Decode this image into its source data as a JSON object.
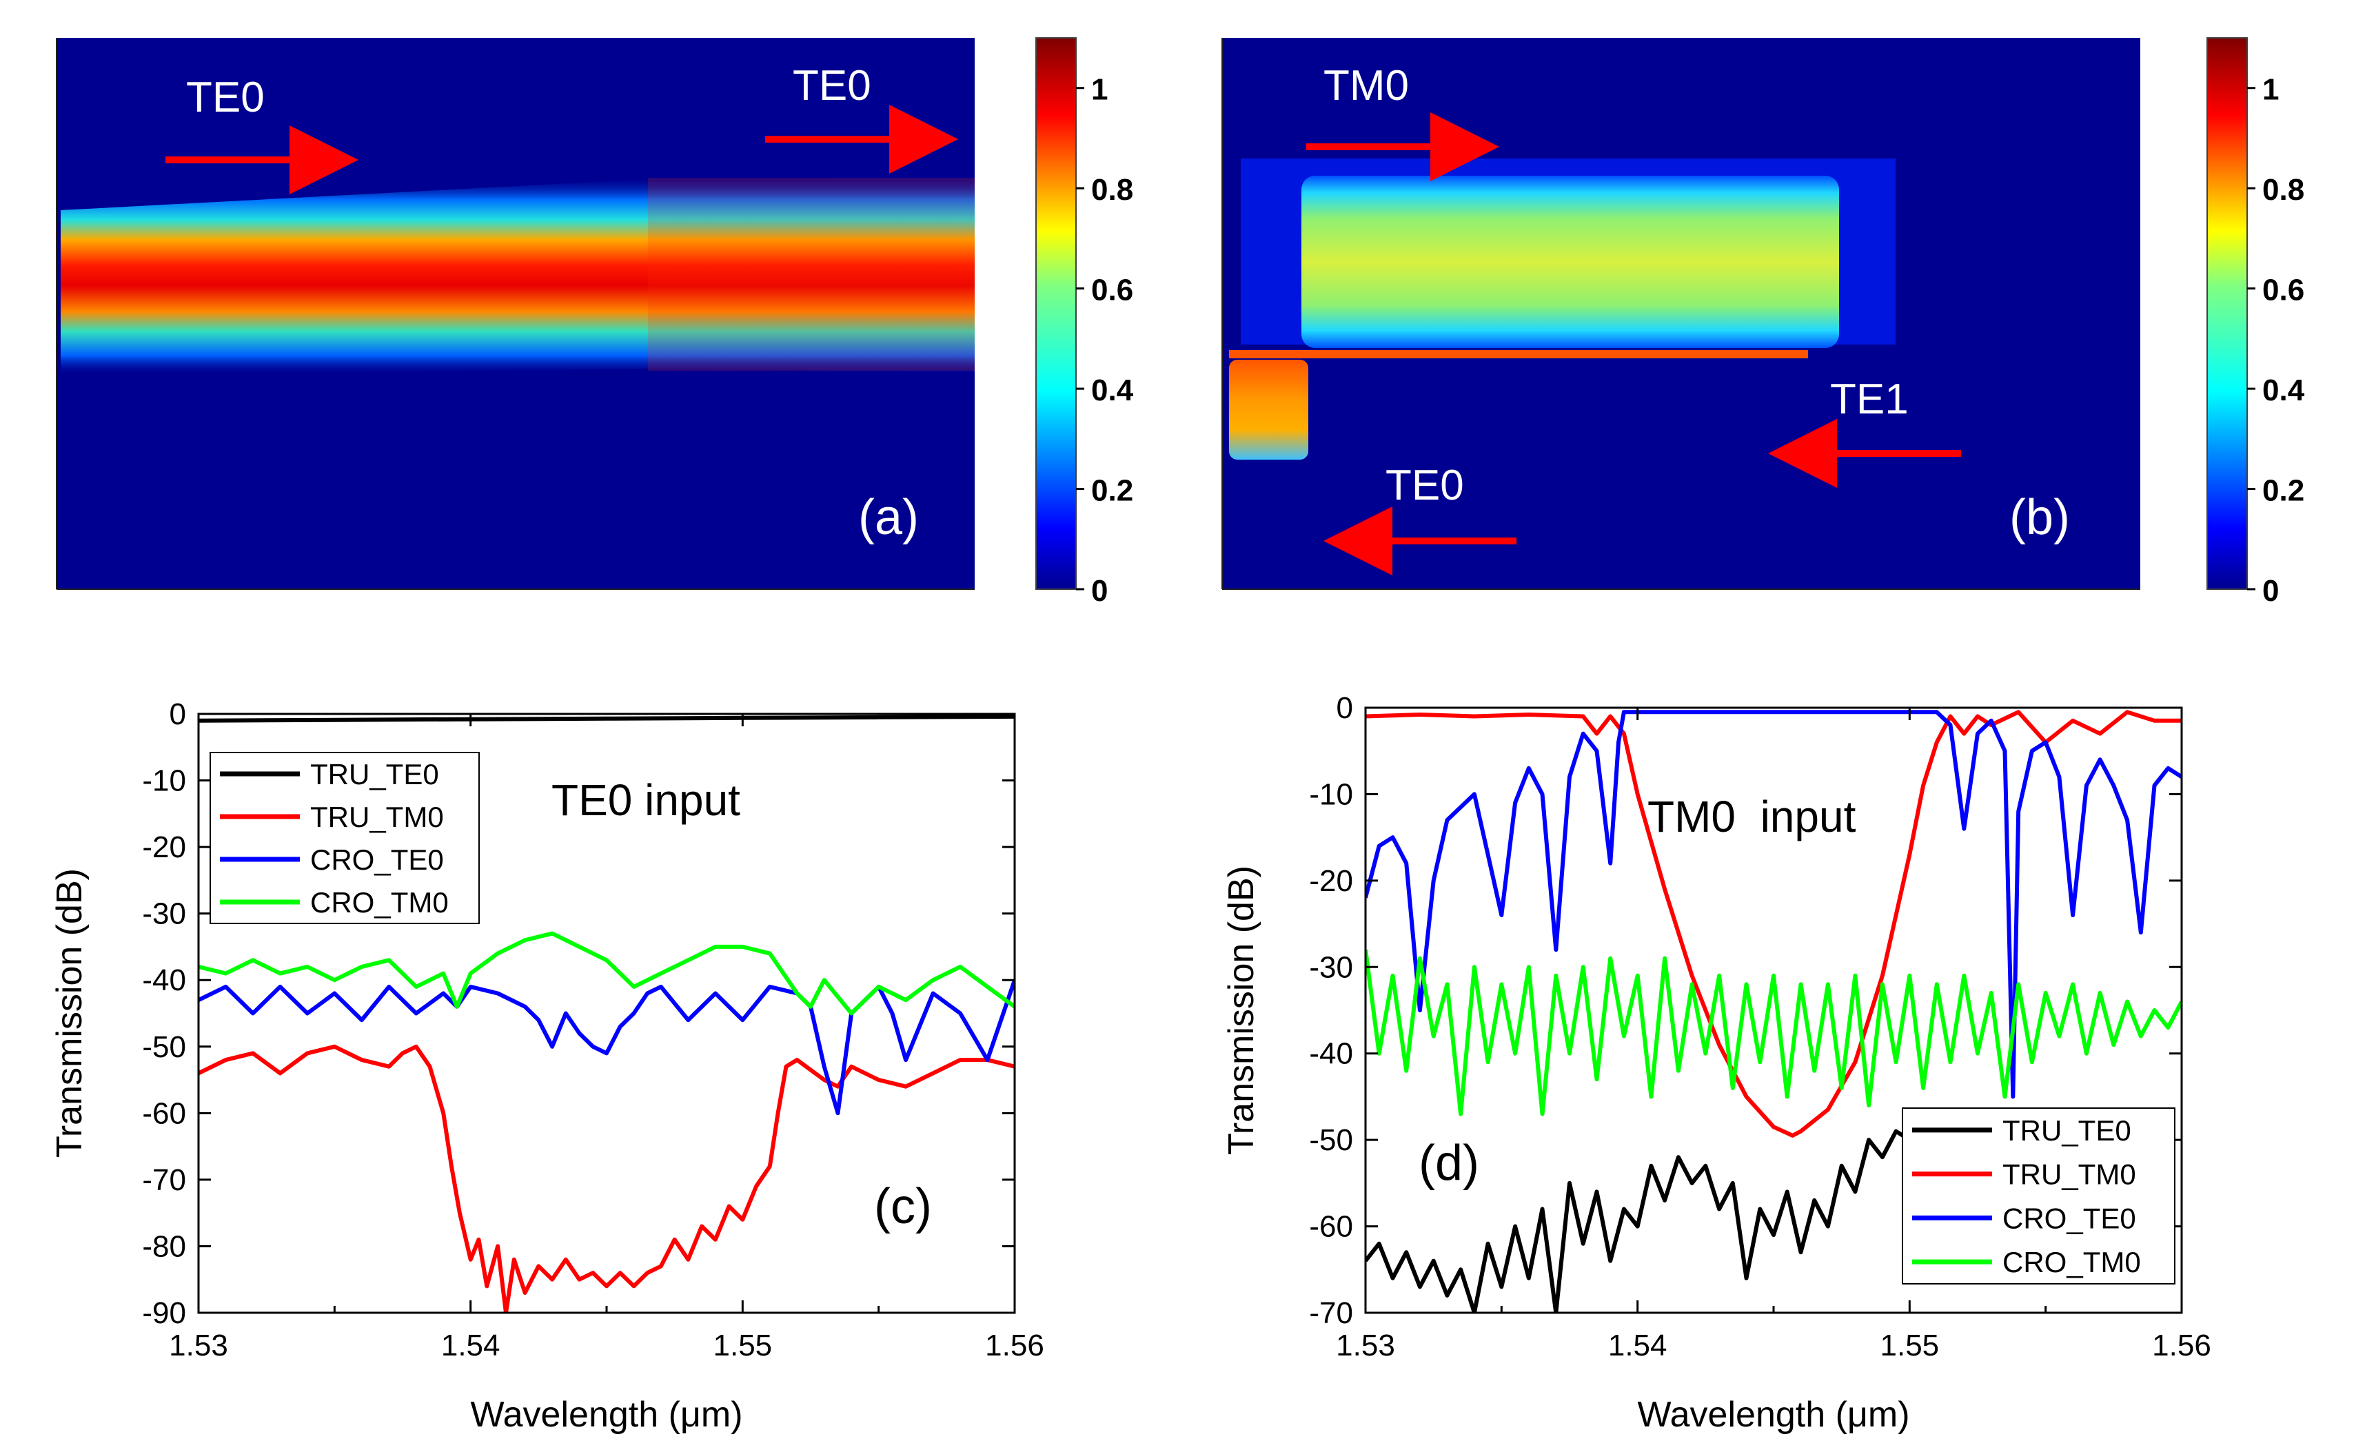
{
  "chart_data": [
    {
      "id": "a",
      "type": "heatmap",
      "label": "(a)",
      "annotations": [
        "TE0",
        "TE0"
      ],
      "colorbar": {
        "range": [
          0,
          1.1
        ],
        "ticks": [
          "0",
          "0.2",
          "0.4",
          "0.6",
          "0.8",
          "1"
        ]
      }
    },
    {
      "id": "b",
      "type": "heatmap",
      "label": "(b)",
      "annotations": [
        "TM0",
        "TE1",
        "TE0"
      ],
      "colorbar": {
        "range": [
          0,
          1.1
        ],
        "ticks": [
          "0",
          "0.2",
          "0.4",
          "0.6",
          "0.8",
          "1"
        ]
      }
    },
    {
      "id": "c",
      "type": "line",
      "label": "(c)",
      "title": "TE0 input",
      "xlabel": "Wavelength (μm)",
      "ylabel": "Transmission (dB)",
      "xlim": [
        1.53,
        1.56
      ],
      "ylim": [
        -90,
        0
      ],
      "xticks": [
        "1.53",
        "1.54",
        "1.55",
        "1.56"
      ],
      "yticks": [
        "0",
        "-10",
        "-20",
        "-30",
        "-40",
        "-50",
        "-60",
        "-70",
        "-80",
        "-90"
      ],
      "legend": [
        "TRU_TE0",
        "TRU_TM0",
        "CRO_TE0",
        "CRO_TM0"
      ],
      "legend_position": "top-left",
      "series": [
        {
          "name": "TRU_TE0",
          "color": "#000000",
          "x": [
            1.53,
            1.535,
            1.54,
            1.545,
            1.55,
            1.555,
            1.56
          ],
          "y": [
            -1.0,
            -0.9,
            -0.8,
            -0.7,
            -0.6,
            -0.5,
            -0.4
          ]
        },
        {
          "name": "TRU_TM0",
          "color": "#ff0000",
          "x": [
            1.53,
            1.531,
            1.532,
            1.533,
            1.534,
            1.535,
            1.536,
            1.537,
            1.5375,
            1.538,
            1.5385,
            1.539,
            1.5393,
            1.5396,
            1.54,
            1.5403,
            1.5406,
            1.541,
            1.5413,
            1.5416,
            1.542,
            1.5425,
            1.543,
            1.5435,
            1.544,
            1.5445,
            1.545,
            1.5455,
            1.546,
            1.5465,
            1.547,
            1.5475,
            1.548,
            1.5485,
            1.549,
            1.5495,
            1.55,
            1.5505,
            1.551,
            1.5513,
            1.5516,
            1.552,
            1.553,
            1.5535,
            1.554,
            1.555,
            1.556,
            1.557,
            1.558,
            1.559,
            1.56
          ],
          "y": [
            -54,
            -52,
            -51,
            -54,
            -51,
            -50,
            -52,
            -53,
            -51,
            -50,
            -53,
            -60,
            -68,
            -75,
            -82,
            -79,
            -86,
            -80,
            -90,
            -82,
            -87,
            -83,
            -85,
            -82,
            -85,
            -84,
            -86,
            -84,
            -86,
            -84,
            -83,
            -79,
            -82,
            -77,
            -79,
            -74,
            -76,
            -71,
            -68,
            -60,
            -53,
            -52,
            -55,
            -56,
            -53,
            -55,
            -56,
            -54,
            -52,
            -52,
            -53
          ]
        },
        {
          "name": "CRO_TE0",
          "color": "#0000ff",
          "x": [
            1.53,
            1.531,
            1.532,
            1.533,
            1.534,
            1.535,
            1.536,
            1.537,
            1.538,
            1.539,
            1.5395,
            1.54,
            1.541,
            1.542,
            1.5425,
            1.543,
            1.5435,
            1.544,
            1.5445,
            1.545,
            1.5455,
            1.546,
            1.5465,
            1.547,
            1.548,
            1.549,
            1.55,
            1.551,
            1.552,
            1.5525,
            1.553,
            1.5535,
            1.554,
            1.555,
            1.5555,
            1.556,
            1.557,
            1.558,
            1.559,
            1.56
          ],
          "y": [
            -43,
            -41,
            -45,
            -41,
            -45,
            -42,
            -46,
            -41,
            -45,
            -42,
            -44,
            -41,
            -42,
            -44,
            -46,
            -50,
            -45,
            -48,
            -50,
            -51,
            -47,
            -45,
            -42,
            -41,
            -46,
            -42,
            -46,
            -41,
            -42,
            -44,
            -53,
            -60,
            -45,
            -41,
            -45,
            -52,
            -42,
            -45,
            -52,
            -40
          ]
        },
        {
          "name": "CRO_TM0",
          "color": "#00ff00",
          "x": [
            1.53,
            1.531,
            1.532,
            1.533,
            1.534,
            1.535,
            1.536,
            1.537,
            1.538,
            1.539,
            1.5395,
            1.54,
            1.541,
            1.542,
            1.543,
            1.544,
            1.545,
            1.546,
            1.547,
            1.548,
            1.549,
            1.55,
            1.551,
            1.552,
            1.5525,
            1.553,
            1.554,
            1.555,
            1.556,
            1.557,
            1.558,
            1.559,
            1.56
          ],
          "y": [
            -38,
            -39,
            -37,
            -39,
            -38,
            -40,
            -38,
            -37,
            -41,
            -39,
            -44,
            -39,
            -36,
            -34,
            -33,
            -35,
            -37,
            -41,
            -39,
            -37,
            -35,
            -35,
            -36,
            -42,
            -44,
            -40,
            -45,
            -41,
            -43,
            -40,
            -38,
            -41,
            -44
          ]
        }
      ]
    },
    {
      "id": "d",
      "type": "line",
      "label": "(d)",
      "title": "TM0  input",
      "xlabel": "Wavelength (μm)",
      "ylabel": "Transmission (dB)",
      "xlim": [
        1.53,
        1.56
      ],
      "ylim": [
        -70,
        0
      ],
      "xticks": [
        "1.53",
        "1.54",
        "1.55",
        "1.56"
      ],
      "yticks": [
        "0",
        "-10",
        "-20",
        "-30",
        "-40",
        "-50",
        "-60",
        "-70"
      ],
      "legend": [
        "TRU_TE0",
        "TRU_TM0",
        "CRO_TE0",
        "CRO_TM0"
      ],
      "legend_position": "bottom-right",
      "series": [
        {
          "name": "TRU_TE0",
          "color": "#000000",
          "x": [
            1.53,
            1.5305,
            1.531,
            1.5315,
            1.532,
            1.5325,
            1.533,
            1.5335,
            1.534,
            1.5345,
            1.535,
            1.5355,
            1.536,
            1.5365,
            1.537,
            1.5375,
            1.538,
            1.5385,
            1.539,
            1.5395,
            1.54,
            1.5405,
            1.541,
            1.5415,
            1.542,
            1.5425,
            1.543,
            1.5435,
            1.544,
            1.5445,
            1.545,
            1.5455,
            1.546,
            1.5465,
            1.547,
            1.5475,
            1.548,
            1.5485,
            1.549,
            1.5495,
            1.55
          ],
          "y": [
            -64,
            -62,
            -66,
            -63,
            -67,
            -64,
            -68,
            -65,
            -70,
            -62,
            -67,
            -60,
            -66,
            -58,
            -70,
            -55,
            -62,
            -56,
            -64,
            -58,
            -60,
            -53,
            -57,
            -52,
            -55,
            -53,
            -58,
            -55,
            -66,
            -58,
            -61,
            -56,
            -63,
            -57,
            -60,
            -53,
            -56,
            -50,
            -52,
            -49,
            -50
          ]
        },
        {
          "name": "TRU_TM0",
          "color": "#ff0000",
          "x": [
            1.53,
            1.532,
            1.534,
            1.536,
            1.538,
            1.5385,
            1.539,
            1.5395,
            1.54,
            1.541,
            1.542,
            1.543,
            1.544,
            1.545,
            1.5457,
            1.546,
            1.547,
            1.548,
            1.549,
            1.55,
            1.5505,
            1.551,
            1.5515,
            1.552,
            1.5525,
            1.553,
            1.554,
            1.555,
            1.556,
            1.557,
            1.558,
            1.559,
            1.56
          ],
          "y": [
            -1,
            -0.8,
            -1,
            -0.8,
            -1,
            -3,
            -1,
            -3,
            -10,
            -21,
            -31,
            -39,
            -45,
            -48.5,
            -49.5,
            -49,
            -46.5,
            -41,
            -31,
            -17,
            -9,
            -4,
            -1,
            -3,
            -1,
            -2,
            -0.5,
            -4,
            -1.5,
            -3,
            -0.5,
            -1.5,
            -1.5
          ]
        },
        {
          "name": "CRO_TE0",
          "color": "#0000ff",
          "x": [
            1.53,
            1.5305,
            1.531,
            1.5315,
            1.532,
            1.5325,
            1.533,
            1.534,
            1.535,
            1.5355,
            1.536,
            1.5365,
            1.537,
            1.5375,
            1.538,
            1.5385,
            1.539,
            1.5393,
            1.5395,
            1.545,
            1.551,
            1.5515,
            1.552,
            1.5525,
            1.553,
            1.5535,
            1.5538,
            1.554,
            1.5545,
            1.555,
            1.5555,
            1.556,
            1.5565,
            1.557,
            1.5575,
            1.558,
            1.5585,
            1.559,
            1.5595,
            1.56
          ],
          "y": [
            -22,
            -16,
            -15,
            -18,
            -35,
            -20,
            -13,
            -10,
            -24,
            -11,
            -7,
            -10,
            -28,
            -8,
            -3,
            -5,
            -18,
            -4,
            -0.5,
            -0.5,
            -0.5,
            -2,
            -14,
            -3,
            -1.5,
            -5,
            -45,
            -12,
            -5,
            -4,
            -8,
            -24,
            -9,
            -6,
            -9,
            -13,
            -26,
            -9,
            -7,
            -8
          ]
        },
        {
          "name": "CRO_TM0",
          "color": "#00ff00",
          "x": [
            1.53,
            1.5305,
            1.531,
            1.5315,
            1.532,
            1.5325,
            1.533,
            1.5335,
            1.534,
            1.5345,
            1.535,
            1.5355,
            1.536,
            1.5365,
            1.537,
            1.5375,
            1.538,
            1.5385,
            1.539,
            1.5395,
            1.54,
            1.5405,
            1.541,
            1.5415,
            1.542,
            1.5425,
            1.543,
            1.5435,
            1.544,
            1.5445,
            1.545,
            1.5455,
            1.546,
            1.5465,
            1.547,
            1.5475,
            1.548,
            1.5485,
            1.549,
            1.5495,
            1.55,
            1.5505,
            1.551,
            1.5515,
            1.552,
            1.5525,
            1.553,
            1.5535,
            1.554,
            1.5545,
            1.555,
            1.5555,
            1.556,
            1.5565,
            1.557,
            1.5575,
            1.558,
            1.5585,
            1.559,
            1.5595,
            1.56
          ],
          "y": [
            -28,
            -40,
            -31,
            -42,
            -29,
            -38,
            -32,
            -47,
            -30,
            -41,
            -32,
            -40,
            -30,
            -47,
            -31,
            -40,
            -30,
            -43,
            -29,
            -38,
            -31,
            -45,
            -29,
            -42,
            -32,
            -40,
            -31,
            -44,
            -32,
            -41,
            -31,
            -45,
            -32,
            -42,
            -32,
            -44,
            -31,
            -46,
            -32,
            -41,
            -31,
            -44,
            -32,
            -41,
            -31,
            -40,
            -33,
            -45,
            -32,
            -41,
            -33,
            -38,
            -32,
            -40,
            -33,
            -39,
            -34,
            -38,
            -35,
            -37,
            -34
          ]
        }
      ]
    }
  ]
}
